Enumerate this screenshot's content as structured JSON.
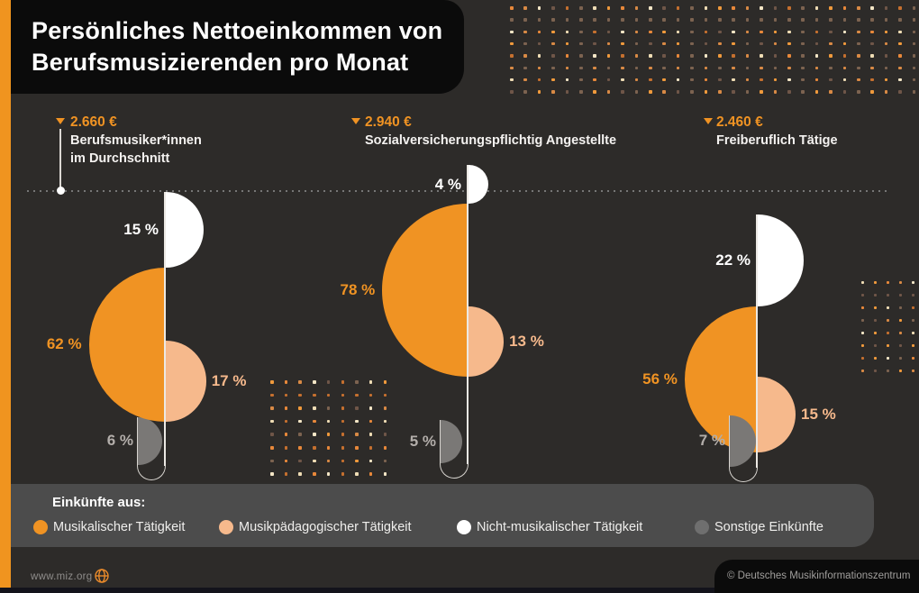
{
  "title": {
    "line1": "Persönliches Nettoeinkommen von",
    "line2": "Berufsmusizierenden pro Monat"
  },
  "chart_data": {
    "type": "pie",
    "variant": "proportional-semicircles-on-note-stems",
    "unit": "%",
    "title": "Persönliches Nettoeinkommen von Berufsmusizierenden pro Monat",
    "categories": [
      "Musikalischer Tätigkeit",
      "Musikpädagogischer Tätigkeit",
      "Nicht-musikalischer Tätigkeit",
      "Sonstige Einkünfte"
    ],
    "category_colors": [
      "#f09323",
      "#f6b98c",
      "#ffffff",
      "#7a7876"
    ],
    "label_colors": [
      "#f09323",
      "#f6b98c",
      "#ffffff",
      "#b3aeaa"
    ],
    "series": [
      {
        "name": "Berufsmusiker*innen\nim Durchschnitt",
        "average_income": "2.660 €",
        "values": [
          62,
          17,
          15,
          6
        ],
        "is_reference_average": true
      },
      {
        "name": "Sozialversicherungspflichtig Angestellte",
        "average_income": "2.940 €",
        "values": [
          78,
          13,
          4,
          5
        ],
        "is_reference_average": false
      },
      {
        "name": "Freiberuflich Tätige",
        "average_income": "2.460 €",
        "values": [
          56,
          15,
          22,
          7
        ],
        "is_reference_average": false
      }
    ]
  },
  "legend": {
    "title": "Einkünfte aus:",
    "items": [
      {
        "label": "Musikalischer Tätigkeit",
        "color": "#f09323"
      },
      {
        "label": "Musikpädagogischer Tätigkeit",
        "color": "#f6b98c"
      },
      {
        "label": "Nicht-musikalischer Tätigkeit",
        "color": "#ffffff"
      },
      {
        "label": "Sonstige Einkünfte",
        "color": "#6f6f6f"
      }
    ]
  },
  "footer": {
    "site": "www.miz.org",
    "credit": "© Deutsches Musikinformationszentrum",
    "globe_icon_color": "#e98a2b"
  },
  "colors": {
    "background": "#2d2b29",
    "accent_strip": "#f0941f",
    "title_box": "#0b0b0b",
    "legend_bar": "#4c4c4c",
    "stem": "#ece9e4",
    "tube_outline": "#d8d5d0",
    "average_dotted_line": "#767676"
  },
  "dot_palette": [
    "#e8883a",
    "#f09a3c",
    "#eedcb4",
    "#7c6350",
    "#c5702f",
    "#6f5648",
    "#f4e6c6",
    "#d98a45"
  ]
}
